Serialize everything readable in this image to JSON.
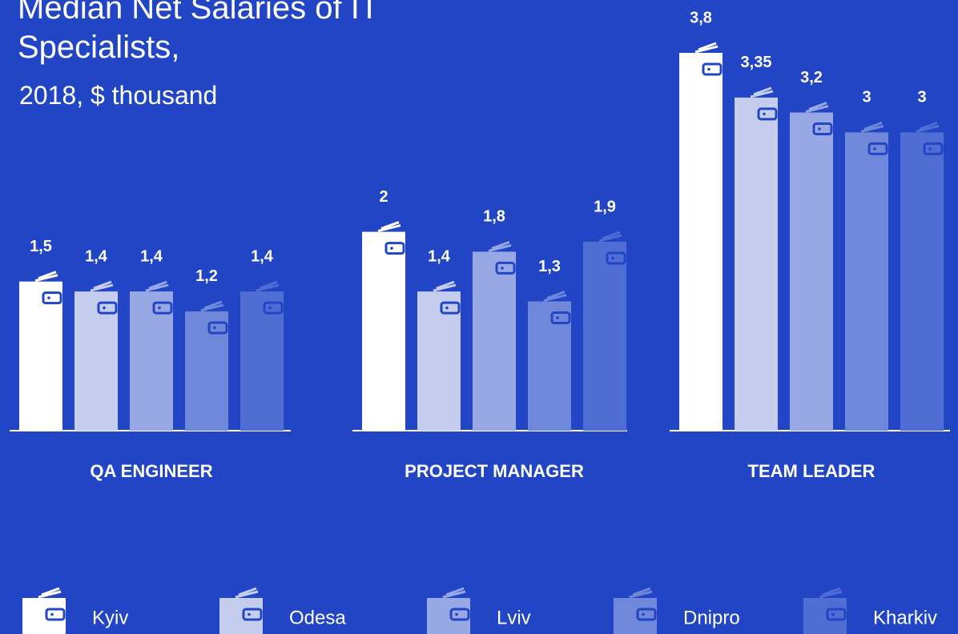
{
  "chart_data": {
    "type": "bar",
    "title": "Median Net Salaries of IT Specialists,",
    "subtitle": "2018, $ thousand",
    "categories": [
      "QA ENGINEER",
      "PROJECT MANAGER",
      "TEAM LEADER"
    ],
    "series": [
      {
        "name": "Kyiv",
        "color": "#ffffff",
        "values": [
          1.5,
          2,
          3.8
        ],
        "value_labels": [
          "1,5",
          "2",
          "3,8"
        ]
      },
      {
        "name": "Odesa",
        "color": "#c5cdef",
        "values": [
          1.4,
          1.4,
          3.35
        ],
        "value_labels": [
          "1,4",
          "1,4",
          "3,35"
        ]
      },
      {
        "name": "Lviv",
        "color": "#98a8e5",
        "values": [
          1.4,
          1.8,
          3.2
        ],
        "value_labels": [
          "1,4",
          "1,8",
          "3,2"
        ]
      },
      {
        "name": "Dnipro",
        "color": "#7088da",
        "values": [
          1.2,
          1.3,
          3
        ],
        "value_labels": [
          "1,2",
          "1,3",
          "3"
        ]
      },
      {
        "name": "Kharkiv",
        "color": "#506dd4",
        "values": [
          1.4,
          1.9,
          3
        ],
        "value_labels": [
          "1,4",
          "1,9",
          "3"
        ]
      }
    ]
  }
}
